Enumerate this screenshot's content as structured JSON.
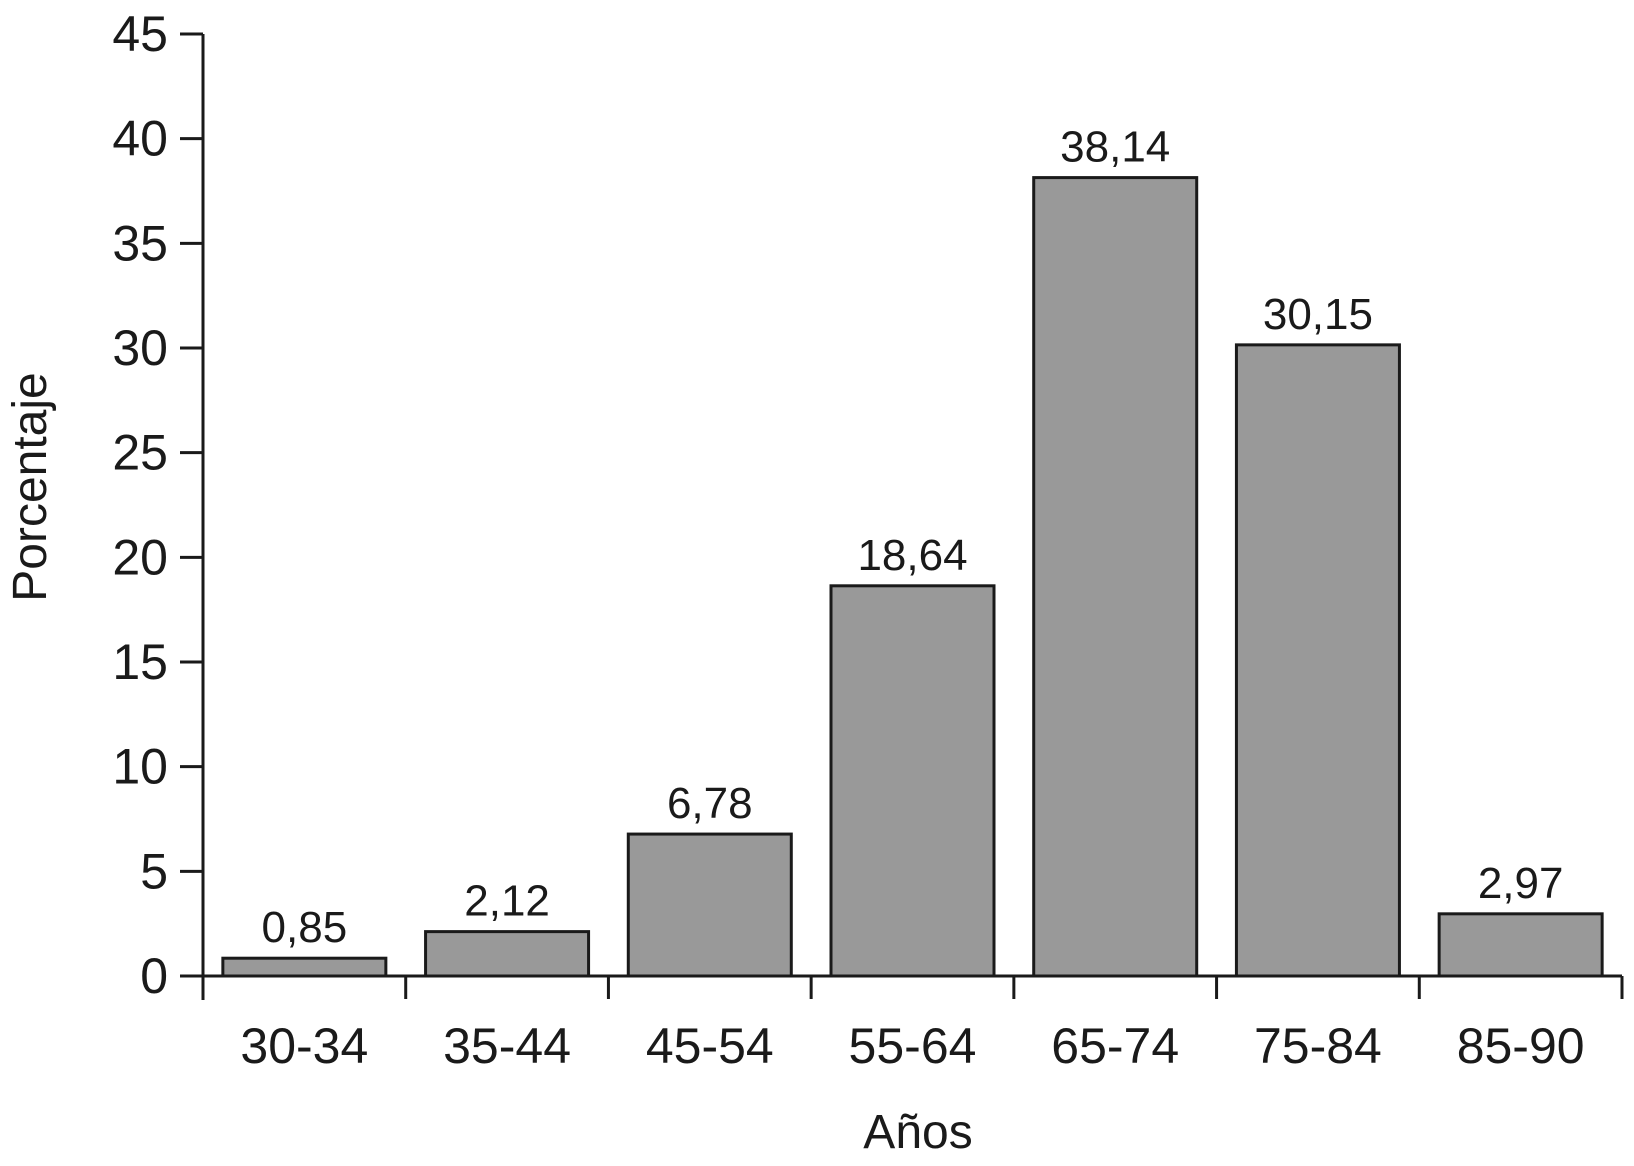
{
  "chart_data": {
    "type": "bar",
    "categories": [
      "30-34",
      "35-44",
      "45-54",
      "55-64",
      "65-74",
      "75-84",
      "85-90"
    ],
    "values": [
      0.85,
      2.12,
      6.78,
      18.64,
      38.14,
      30.15,
      2.97
    ],
    "value_labels": [
      "0,85",
      "2,12",
      "6,78",
      "18,64",
      "38,14",
      "30,15",
      "2,97"
    ],
    "title": "",
    "xlabel": "Años",
    "ylabel": "Porcentaje",
    "ylim": [
      0,
      45
    ],
    "yticks": [
      0,
      5,
      10,
      15,
      20,
      25,
      30,
      35,
      40,
      45
    ],
    "grid": false,
    "legend": "none",
    "colors": {
      "bar": "#999999",
      "bar_stroke": "#1a1a1a",
      "axis": "#1a1a1a"
    }
  }
}
